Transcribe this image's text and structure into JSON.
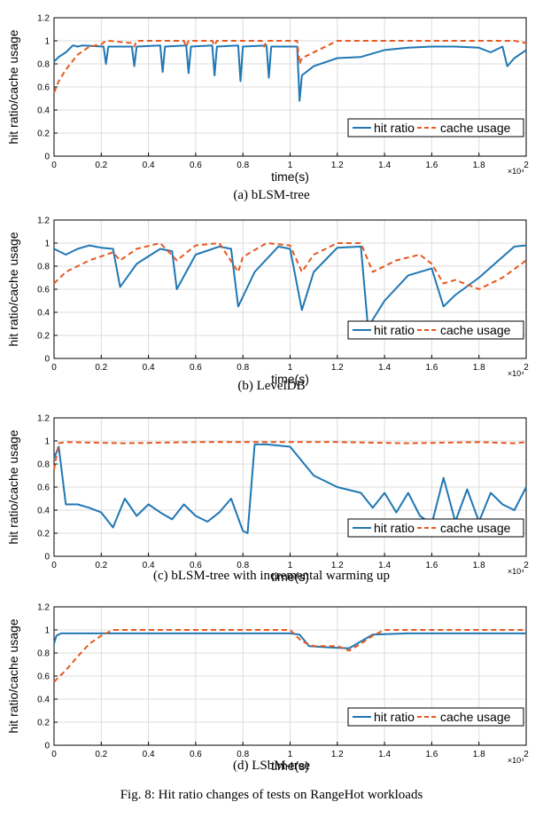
{
  "figure_caption": "Fig. 8: Hit ratio changes of tests on RangeHot workloads",
  "colors": {
    "hit": "#1f77b4",
    "cache": "#e6581f",
    "grid": "#dcdcdc",
    "axis": "#000000"
  },
  "chart_data": [
    {
      "type": "line",
      "caption": "(a) bLSM-tree",
      "xlabel": "time(s)",
      "ylabel": "hit ratio/cache usage",
      "x_exponent": "×10⁴",
      "xlim": [
        0,
        2
      ],
      "ylim": [
        0,
        1.2
      ],
      "xticks": [
        "0",
        "0.2",
        "0.4",
        "0.6",
        "0.8",
        "1",
        "1.2",
        "1.4",
        "1.6",
        "1.8",
        "2"
      ],
      "yticks": [
        "0",
        "0.2",
        "0.4",
        "0.6",
        "0.8",
        "1",
        "1.2"
      ],
      "legend": [
        "hit ratio",
        "cache usage"
      ],
      "legend_position": "bottom-right",
      "grid": true,
      "series": [
        {
          "name": "hit ratio",
          "x": [
            0,
            0.02,
            0.05,
            0.08,
            0.1,
            0.12,
            0.21,
            0.22,
            0.23,
            0.33,
            0.34,
            0.35,
            0.45,
            0.46,
            0.47,
            0.56,
            0.57,
            0.58,
            0.67,
            0.68,
            0.69,
            0.78,
            0.79,
            0.8,
            0.9,
            0.91,
            0.92,
            1.03,
            1.04,
            1.05,
            1.1,
            1.2,
            1.3,
            1.4,
            1.5,
            1.6,
            1.7,
            1.8,
            1.85,
            1.9,
            1.92,
            1.95,
            2.0
          ],
          "values": [
            0.82,
            0.86,
            0.9,
            0.96,
            0.95,
            0.96,
            0.95,
            0.8,
            0.95,
            0.95,
            0.78,
            0.95,
            0.96,
            0.73,
            0.95,
            0.96,
            0.72,
            0.95,
            0.96,
            0.7,
            0.95,
            0.96,
            0.65,
            0.95,
            0.96,
            0.68,
            0.95,
            0.95,
            0.48,
            0.7,
            0.78,
            0.85,
            0.86,
            0.92,
            0.94,
            0.95,
            0.95,
            0.94,
            0.9,
            0.95,
            0.78,
            0.85,
            0.92
          ]
        },
        {
          "name": "cache usage",
          "x": [
            0,
            0.02,
            0.05,
            0.1,
            0.15,
            0.2,
            0.22,
            0.23,
            0.33,
            0.34,
            0.35,
            0.55,
            0.56,
            0.57,
            0.67,
            0.68,
            0.69,
            0.88,
            0.89,
            0.9,
            1.03,
            1.04,
            1.05,
            1.2,
            1.3,
            1.4,
            1.95,
            2.0
          ],
          "values": [
            0.55,
            0.65,
            0.75,
            0.88,
            0.95,
            0.97,
            1.0,
            1.0,
            0.98,
            0.95,
            1.0,
            1.0,
            0.95,
            1.0,
            1.0,
            0.96,
            1.0,
            1.0,
            0.95,
            1.0,
            1.0,
            0.8,
            0.85,
            1.0,
            1.0,
            1.0,
            1.0,
            0.98
          ]
        }
      ]
    },
    {
      "type": "line",
      "caption": "(b) LevelDB",
      "xlabel": "time(s)",
      "ylabel": "hit ratio/cache usage",
      "x_exponent": "×10⁴",
      "xlim": [
        0,
        2
      ],
      "ylim": [
        0,
        1.2
      ],
      "xticks": [
        "0",
        "0.2",
        "0.4",
        "0.6",
        "0.8",
        "1",
        "1.2",
        "1.4",
        "1.6",
        "1.8",
        "2"
      ],
      "yticks": [
        "0",
        "0.2",
        "0.4",
        "0.6",
        "0.8",
        "1",
        "1.2"
      ],
      "legend": [
        "hit ratio",
        "cache usage"
      ],
      "legend_position": "bottom-right",
      "grid": true,
      "series": [
        {
          "name": "hit ratio",
          "x": [
            0,
            0.05,
            0.1,
            0.15,
            0.2,
            0.25,
            0.28,
            0.35,
            0.45,
            0.5,
            0.52,
            0.6,
            0.7,
            0.75,
            0.78,
            0.85,
            0.95,
            1.0,
            1.05,
            1.1,
            1.2,
            1.3,
            1.33,
            1.4,
            1.5,
            1.6,
            1.65,
            1.7,
            1.8,
            1.9,
            1.95,
            2.0
          ],
          "values": [
            0.95,
            0.9,
            0.95,
            0.98,
            0.96,
            0.95,
            0.62,
            0.82,
            0.95,
            0.93,
            0.6,
            0.9,
            0.97,
            0.95,
            0.45,
            0.75,
            0.97,
            0.95,
            0.42,
            0.75,
            0.96,
            0.97,
            0.27,
            0.5,
            0.72,
            0.78,
            0.45,
            0.55,
            0.7,
            0.88,
            0.97,
            0.98
          ]
        },
        {
          "name": "cache usage",
          "x": [
            0,
            0.05,
            0.15,
            0.25,
            0.28,
            0.35,
            0.45,
            0.52,
            0.6,
            0.7,
            0.78,
            0.8,
            0.9,
            1.0,
            1.05,
            1.1,
            1.2,
            1.3,
            1.35,
            1.45,
            1.55,
            1.6,
            1.65,
            1.7,
            1.8,
            1.85,
            1.9,
            2.0
          ],
          "values": [
            0.65,
            0.75,
            0.85,
            0.92,
            0.85,
            0.95,
            1.0,
            0.85,
            0.98,
            1.0,
            0.75,
            0.88,
            1.0,
            0.98,
            0.75,
            0.9,
            1.0,
            1.0,
            0.75,
            0.85,
            0.9,
            0.82,
            0.65,
            0.68,
            0.6,
            0.65,
            0.7,
            0.85
          ]
        }
      ]
    },
    {
      "type": "line",
      "caption": "(c) bLSM-tree with incremental warming up",
      "xlabel": "time(s)",
      "ylabel": "hit ratio/cache usage",
      "x_exponent": "×10⁴",
      "xlim": [
        0,
        2
      ],
      "ylim": [
        0,
        1.2
      ],
      "xticks": [
        "0",
        "0.2",
        "0.4",
        "0.6",
        "0.8",
        "1",
        "1.2",
        "1.4",
        "1.6",
        "1.8",
        "2"
      ],
      "yticks": [
        "0",
        "0.2",
        "0.4",
        "0.6",
        "0.8",
        "1",
        "1.2"
      ],
      "legend": [
        "hit ratio",
        "cache usage"
      ],
      "legend_position": "bottom-right",
      "grid": true,
      "series": [
        {
          "name": "hit ratio",
          "x": [
            0,
            0.02,
            0.05,
            0.1,
            0.15,
            0.2,
            0.25,
            0.3,
            0.35,
            0.4,
            0.45,
            0.5,
            0.55,
            0.6,
            0.65,
            0.7,
            0.75,
            0.8,
            0.82,
            0.85,
            0.9,
            1.0,
            1.1,
            1.2,
            1.3,
            1.35,
            1.4,
            1.45,
            1.5,
            1.55,
            1.6,
            1.65,
            1.7,
            1.75,
            1.8,
            1.85,
            1.9,
            1.95,
            2.0
          ],
          "values": [
            0.85,
            0.95,
            0.45,
            0.45,
            0.42,
            0.38,
            0.25,
            0.5,
            0.35,
            0.45,
            0.38,
            0.32,
            0.45,
            0.35,
            0.3,
            0.38,
            0.5,
            0.22,
            0.2,
            0.97,
            0.97,
            0.95,
            0.7,
            0.6,
            0.55,
            0.42,
            0.55,
            0.38,
            0.55,
            0.35,
            0.28,
            0.68,
            0.3,
            0.58,
            0.3,
            0.55,
            0.45,
            0.4,
            0.6
          ]
        },
        {
          "name": "cache usage",
          "x": [
            0,
            0.02,
            0.05,
            0.3,
            0.6,
            0.9,
            1.2,
            1.5,
            1.8,
            1.95,
            2.0
          ],
          "values": [
            0.75,
            0.98,
            0.99,
            0.98,
            0.99,
            0.99,
            0.99,
            0.98,
            0.99,
            0.98,
            0.99
          ]
        }
      ]
    },
    {
      "type": "line",
      "caption": "(d) LSbM-tree",
      "xlabel": "time(s)",
      "ylabel": "hit ratio/cache usage",
      "x_exponent": "×10⁴",
      "xlim": [
        0,
        2
      ],
      "ylim": [
        0,
        1.2
      ],
      "xticks": [
        "0",
        "0.2",
        "0.4",
        "0.6",
        "0.8",
        "1",
        "1.2",
        "1.4",
        "1.6",
        "1.8",
        "2"
      ],
      "yticks": [
        "0",
        "0.2",
        "0.4",
        "0.6",
        "0.8",
        "1",
        "1.2"
      ],
      "legend": [
        "hit ratio",
        "cache usage"
      ],
      "legend_position": "bottom-right",
      "grid": true,
      "series": [
        {
          "name": "hit ratio",
          "x": [
            0,
            0.01,
            0.03,
            0.1,
            0.5,
            1.0,
            1.04,
            1.08,
            1.15,
            1.25,
            1.3,
            1.35,
            1.5,
            2.0
          ],
          "values": [
            0.88,
            0.95,
            0.97,
            0.97,
            0.97,
            0.97,
            0.96,
            0.86,
            0.85,
            0.84,
            0.9,
            0.96,
            0.97,
            0.97
          ]
        },
        {
          "name": "cache usage",
          "x": [
            0,
            0.05,
            0.1,
            0.15,
            0.2,
            0.25,
            0.5,
            1.0,
            1.05,
            1.1,
            1.2,
            1.25,
            1.3,
            1.35,
            1.4,
            2.0
          ],
          "values": [
            0.55,
            0.65,
            0.77,
            0.88,
            0.95,
            1.0,
            1.0,
            1.0,
            0.9,
            0.86,
            0.86,
            0.82,
            0.88,
            0.95,
            1.0,
            1.0
          ]
        }
      ]
    }
  ]
}
